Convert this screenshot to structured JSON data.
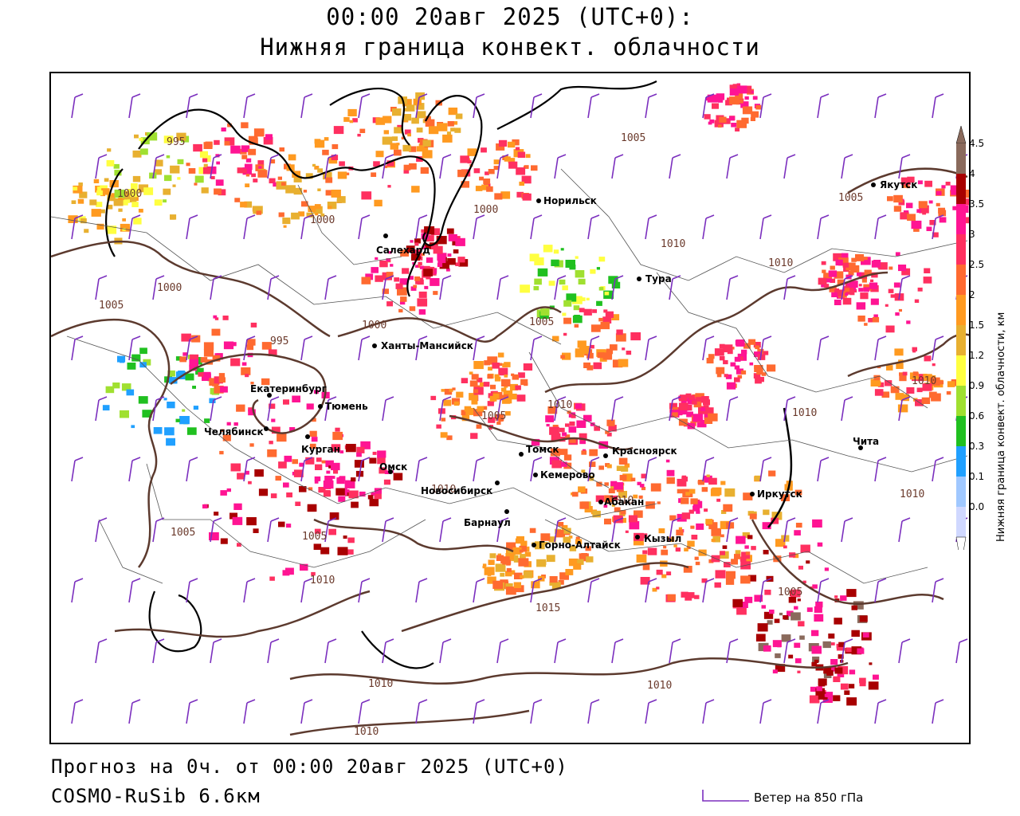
{
  "header": {
    "title_line1": "00:00 20авг 2025 (UTC+0):",
    "title_line2": "Нижняя граница конвект. облачности"
  },
  "legend": {
    "title": "Нижняя граница конвект. облачности, км",
    "levels": [
      "4.5",
      "4",
      "3.5",
      "3",
      "2.5",
      "2",
      "1.5",
      "1.2",
      "0.9",
      "0.6",
      "0.3",
      "0.1",
      "0.03"
    ],
    "colors": [
      "#8a6a5c",
      "#a80000",
      "#ff1493",
      "#ff3060",
      "#ff6a30",
      "#ff9a20",
      "#e8b030",
      "#ffff40",
      "#a0e030",
      "#20c020",
      "#20a0ff",
      "#a0c8ff",
      "#d0d8ff"
    ]
  },
  "cities": [
    {
      "name": "Салехард"
    },
    {
      "name": "Норильск"
    },
    {
      "name": "Якутск"
    },
    {
      "name": "Тура"
    },
    {
      "name": "Ханты-Мансийск"
    },
    {
      "name": "Екатеринбург"
    },
    {
      "name": "Тюмень"
    },
    {
      "name": "Челябинск"
    },
    {
      "name": "Курган"
    },
    {
      "name": "Омск"
    },
    {
      "name": "Томск"
    },
    {
      "name": "Новосибирск"
    },
    {
      "name": "Кемерово"
    },
    {
      "name": "Барнаул"
    },
    {
      "name": "Красноярск"
    },
    {
      "name": "Абакан"
    },
    {
      "name": "Горно-Алтайск"
    },
    {
      "name": "Кызыл"
    },
    {
      "name": "Иркутск"
    },
    {
      "name": "Чита"
    }
  ],
  "isobars": [
    "1000",
    "1005",
    "1010",
    "1015",
    "995"
  ],
  "footer": {
    "forecast": "Прогноз на 0ч. от 00:00 20авг 2025 (UTC+0)",
    "model": "COSMO-RuSib 6.6км",
    "wind_legend": "Ветер на 850 гПа"
  },
  "colors": {
    "isobar": "#5c3a2e",
    "border": "#000000",
    "wind_barb": "#7b2fbe"
  }
}
